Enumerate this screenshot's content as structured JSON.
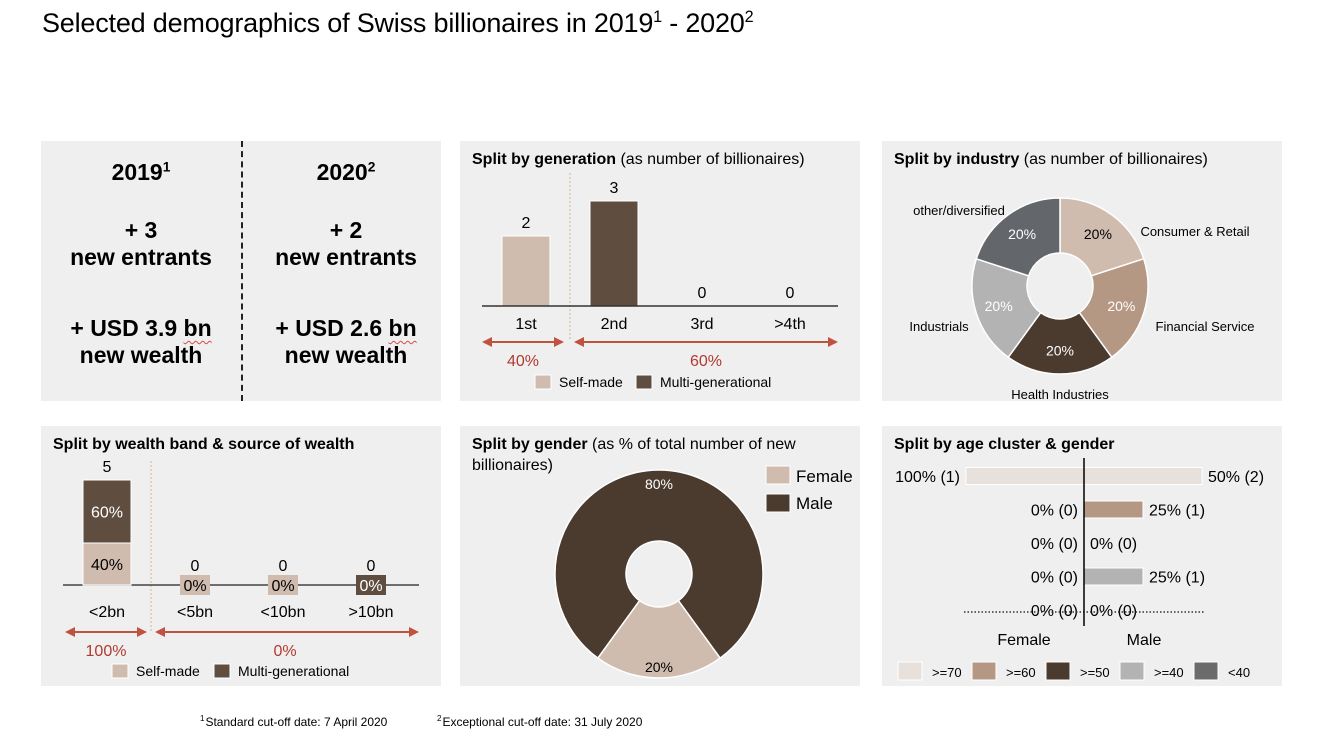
{
  "title": {
    "text": "Selected demographics of Swiss billionaires in 2019",
    "sup1": "1",
    "mid": " - 2020",
    "sup2": "2"
  },
  "colors": {
    "panel_bg": "#efefef",
    "self_made": "#cfbcaf",
    "multi_generational": "#5f4d40",
    "arrow": "#c0533f",
    "arrow_text": "#b03a2e",
    "age_70": "#e8e0db",
    "age_60": "#b59884",
    "age_50": "#4b3a2e",
    "age_40": "#b3b3b3",
    "age_lt40": "#6b6b6b",
    "industry_consumer": "#cfbcaf",
    "industry_financial": "#b59884",
    "industry_health": "#4b3a2e",
    "industry_industrials": "#b3b3b3",
    "industry_other": "#63666a",
    "gender_female": "#cfbcaf",
    "gender_male": "#4b3a2e"
  },
  "summary": {
    "col2019": {
      "year": "2019",
      "sup": "1",
      "entrants_count": "+ 3",
      "entrants_label": "new entrants",
      "wealth_prefix": "+ USD 3.9 ",
      "wealth_unit": "bn",
      "wealth_label": "new wealth"
    },
    "col2020": {
      "year": "2020",
      "sup": "2",
      "entrants_count": "+ 2",
      "entrants_label": "new entrants",
      "wealth_prefix": "+ USD 2.6 ",
      "wealth_unit": "bn",
      "wealth_label": "new wealth"
    }
  },
  "legend_source": {
    "self_made": "Self-made",
    "multi_generational": "Multi-generational"
  },
  "chart_data": [
    {
      "id": "generation",
      "type": "bar",
      "title_bold": "Split by generation",
      "title_rest": " (as number of billionaires)",
      "categories": [
        "1st",
        "2nd",
        "3rd",
        ">4th"
      ],
      "values": [
        2,
        3,
        0,
        0
      ],
      "series_of_category": [
        "self_made",
        "multi_generational",
        "multi_generational",
        "multi_generational"
      ],
      "ylim": [
        0,
        3
      ],
      "brackets": [
        {
          "label": "40%",
          "span": [
            "1st",
            "1st"
          ]
        },
        {
          "label": "60%",
          "span": [
            "2nd",
            ">4th"
          ]
        }
      ],
      "legend": [
        "Self-made",
        "Multi-generational"
      ],
      "legend_position": "bottom"
    },
    {
      "id": "industry",
      "type": "pie",
      "donut": true,
      "title_bold": "Split by industry",
      "title_rest": " (as number of billionaires)",
      "slices": [
        {
          "label": "Consumer & Retail",
          "value": 20,
          "text": "20%"
        },
        {
          "label": "Financial Service",
          "value": 20,
          "text": "20%"
        },
        {
          "label": "Health Industries",
          "value": 20,
          "text": "20%"
        },
        {
          "label": "Industrials",
          "value": 20,
          "text": "20%"
        },
        {
          "label": "other/diversified",
          "value": 20,
          "text": "20%"
        }
      ]
    },
    {
      "id": "wealth_band",
      "type": "bar",
      "stacked": true,
      "title_bold": "Split by wealth band & source of wealth",
      "title_rest": "",
      "categories": [
        "<2bn",
        "<5bn",
        "<10bn",
        ">10bn"
      ],
      "totals": [
        5,
        0,
        0,
        0
      ],
      "series": [
        {
          "name": "Self-made",
          "share": [
            40,
            0,
            0,
            null
          ],
          "labels": [
            "40%",
            "0%",
            "0%",
            null
          ]
        },
        {
          "name": "Multi-generational",
          "share": [
            60,
            null,
            null,
            0
          ],
          "labels": [
            "60%",
            null,
            null,
            "0%"
          ]
        }
      ],
      "ylim": [
        0,
        5
      ],
      "brackets": [
        {
          "label": "100%",
          "span": [
            "<2bn",
            "<2bn"
          ]
        },
        {
          "label": "0%",
          "span": [
            "<5bn",
            ">10bn"
          ]
        }
      ],
      "legend": [
        "Self-made",
        "Multi-generational"
      ],
      "legend_position": "bottom"
    },
    {
      "id": "gender",
      "type": "pie",
      "donut": true,
      "title_bold": "Split by gender",
      "title_rest": " (as % of total number of new billionaires)",
      "slices": [
        {
          "label": "Female",
          "value": 20,
          "text": "20%"
        },
        {
          "label": "Male",
          "value": 80,
          "text": "80%"
        }
      ],
      "legend": [
        "Female",
        "Male"
      ],
      "legend_position": "top-right"
    },
    {
      "id": "age",
      "type": "bar",
      "orientation": "horizontal-diverging",
      "title_bold": "Split by age cluster & gender",
      "title_rest": "",
      "categories": [
        ">=70",
        ">=60",
        ">=50",
        ">=40",
        "<40"
      ],
      "female": {
        "label": "Female",
        "share": [
          100,
          0,
          0,
          0,
          0
        ],
        "labels": [
          "100% (1)",
          "0% (0)",
          "0% (0)",
          "0% (0)",
          "0% (0)"
        ]
      },
      "male": {
        "label": "Male",
        "share": [
          50,
          25,
          0,
          25,
          0
        ],
        "labels": [
          "50% (2)",
          "25% (1)",
          "0% (0)",
          "25% (1)",
          "0% (0)"
        ]
      },
      "xlim": [
        0,
        100
      ],
      "legend": [
        ">=70",
        ">=60",
        ">=50",
        ">=40",
        "<40"
      ],
      "legend_position": "bottom"
    }
  ],
  "footnotes": [
    {
      "num": "1",
      "text": "Standard cut-off date: 7 April 2020"
    },
    {
      "num": "2",
      "text": "Exceptional cut-off date: 31 July 2020"
    }
  ]
}
